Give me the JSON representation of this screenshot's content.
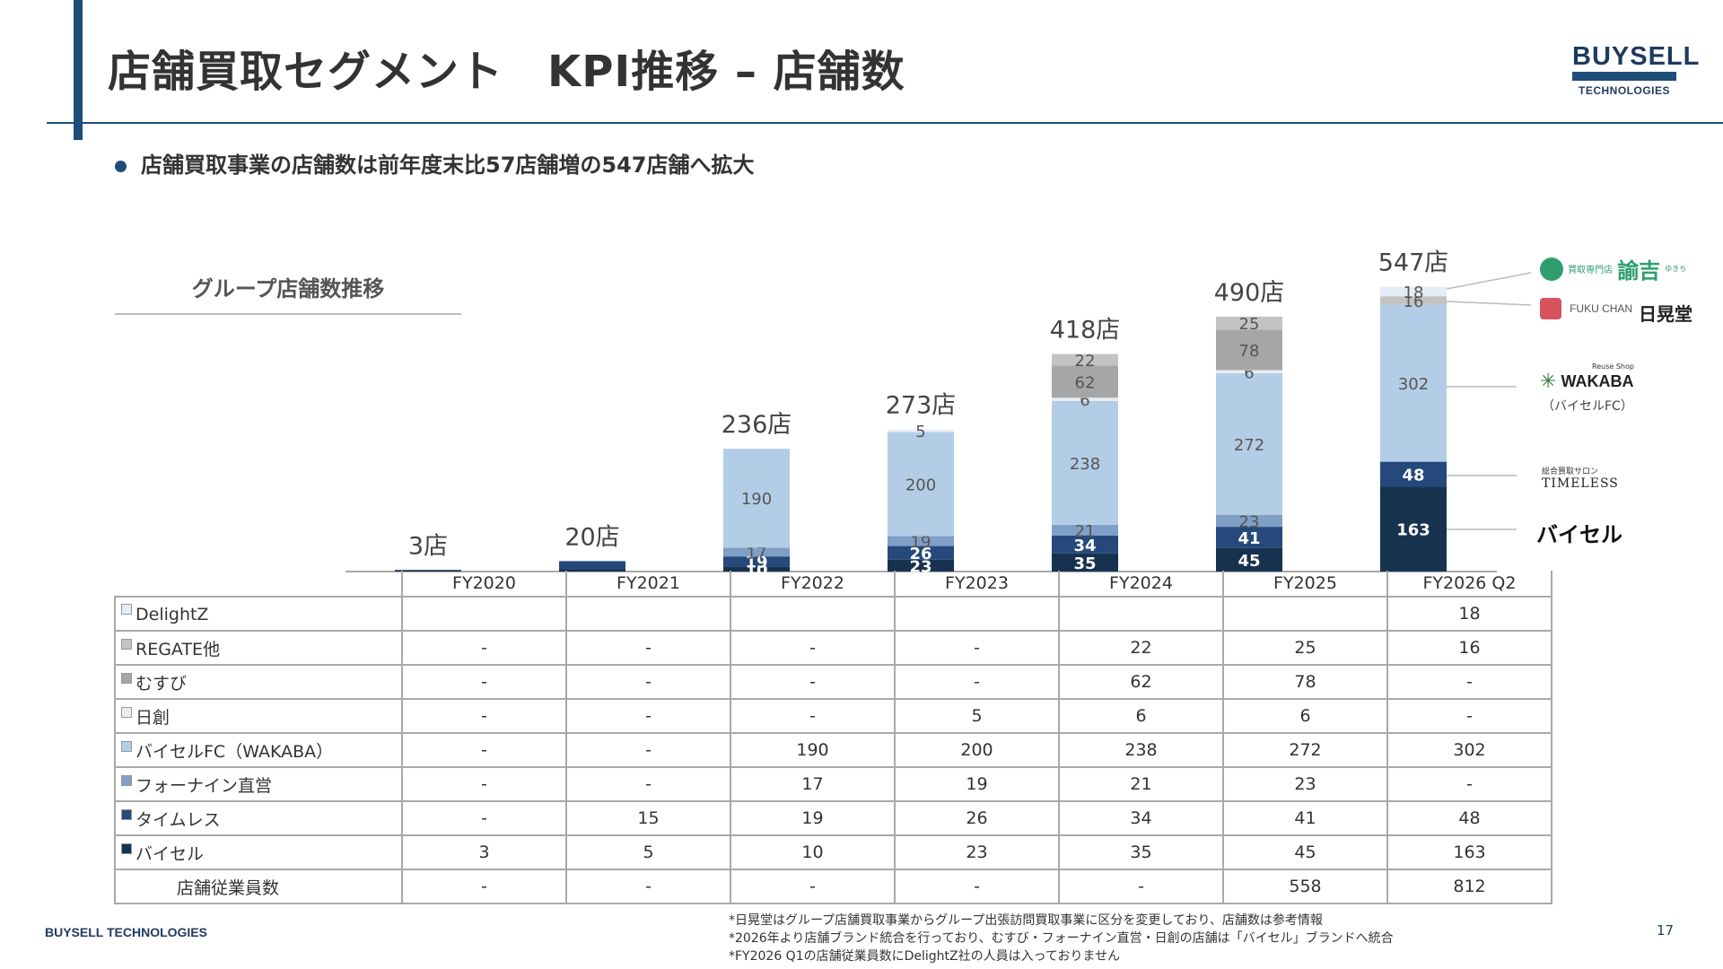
{
  "header": {
    "title": "店舗買取セグメント　KPI推移 – 店舗数",
    "logo_top": "BUYSELL",
    "logo_bottom": "TECHNOLOGIES"
  },
  "bullet": "店舗買取事業の店舗数は前年度末比57店舗増の547店舗へ拡大",
  "chart_title": "グループ店舗数推移",
  "brands": {
    "yukichi_sub": "買取専門店",
    "yukichi": "諭吉",
    "yukichi_small": "ゆきち",
    "fukuchan": "FUKU CHAN",
    "nikkodo": "日晃堂",
    "wakaba_sub": "Reuse Shop",
    "wakaba": "WAKABA",
    "wakaba_note": "（バイセルFC）",
    "timeless_sub": "総合買取サロン",
    "timeless": "TIMELESS",
    "buysell": "バイセル"
  },
  "chart_data": {
    "type": "bar",
    "stacked": true,
    "categories": [
      "FY2020",
      "FY2021",
      "FY2022",
      "FY2023",
      "FY2024",
      "FY2025",
      "FY2026 Q2"
    ],
    "totals": [
      "3店",
      "20店",
      "236店",
      "273店",
      "418店",
      "490店",
      "547店"
    ],
    "total_values": [
      3,
      20,
      236,
      273,
      418,
      490,
      547
    ],
    "series": [
      {
        "name": "バイセル",
        "color": "#16324f",
        "values": [
          3,
          5,
          10,
          23,
          35,
          45,
          163
        ]
      },
      {
        "name": "タイムレス",
        "color": "#24497a",
        "values": [
          null,
          15,
          19,
          26,
          34,
          41,
          48
        ]
      },
      {
        "name": "フォーナイン直営",
        "color": "#7f9fc6",
        "values": [
          null,
          null,
          17,
          19,
          21,
          23,
          null
        ]
      },
      {
        "name": "バイセルFC（WAKABA）",
        "color": "#b3cde6",
        "values": [
          null,
          null,
          190,
          200,
          238,
          272,
          302
        ]
      },
      {
        "name": "日創",
        "color": "#e8edf3",
        "values": [
          null,
          null,
          null,
          5,
          6,
          6,
          null
        ]
      },
      {
        "name": "むすび",
        "color": "#a6a6a6",
        "values": [
          null,
          null,
          null,
          null,
          62,
          78,
          null
        ]
      },
      {
        "name": "REGATE他",
        "color": "#c3c3c3",
        "values": [
          null,
          null,
          null,
          null,
          22,
          25,
          16
        ]
      },
      {
        "name": "DelightZ",
        "color": "#e4ecf5",
        "values": [
          null,
          null,
          null,
          null,
          null,
          null,
          18
        ]
      }
    ]
  },
  "table": {
    "columns": [
      "FY2020",
      "FY2021",
      "FY2022",
      "FY2023",
      "FY2024",
      "FY2025",
      "FY2026 Q2"
    ],
    "rows": [
      {
        "label": "DelightZ",
        "color": "#e4ecf5",
        "cells": [
          "",
          "",
          "",
          "",
          "",
          "",
          "18"
        ]
      },
      {
        "label": "REGATE他",
        "color": "#c3c3c3",
        "cells": [
          "-",
          "-",
          "-",
          "-",
          "22",
          "25",
          "16"
        ]
      },
      {
        "label": "むすび",
        "color": "#a6a6a6",
        "cells": [
          "-",
          "-",
          "-",
          "-",
          "62",
          "78",
          "-"
        ]
      },
      {
        "label": "日創",
        "color": "#e8edf3",
        "cells": [
          "-",
          "-",
          "-",
          "5",
          "6",
          "6",
          "-"
        ]
      },
      {
        "label": "バイセルFC（WAKABA）",
        "color": "#b3cde6",
        "cells": [
          "-",
          "-",
          "190",
          "200",
          "238",
          "272",
          "302"
        ]
      },
      {
        "label": "フォーナイン直営",
        "color": "#7f9fc6",
        "cells": [
          "-",
          "-",
          "17",
          "19",
          "21",
          "23",
          "-"
        ]
      },
      {
        "label": "タイムレス",
        "color": "#24497a",
        "cells": [
          "-",
          "15",
          "19",
          "26",
          "34",
          "41",
          "48"
        ]
      },
      {
        "label": "バイセル",
        "color": "#16324f",
        "cells": [
          "3",
          "5",
          "10",
          "23",
          "35",
          "45",
          "163"
        ]
      },
      {
        "label": "店舗従業員数",
        "color": "",
        "cells": [
          "-",
          "-",
          "-",
          "-",
          "-",
          "558",
          "812"
        ]
      }
    ]
  },
  "footer": {
    "company": "BUYSELL TECHNOLOGIES",
    "notes": [
      "*日晃堂はグループ店舗買取事業からグループ出張訪問買取事業に区分を変更しており、店舗数は参考情報",
      "*2026年より店舗ブランド統合を行っており、むすび・フォーナイン直営・日創の店舗は「バイセル」ブランドへ統合",
      "*FY2026 Q1の店舗従業員数にDelightZ社の人員は入っておりません"
    ],
    "page_number": "17"
  }
}
